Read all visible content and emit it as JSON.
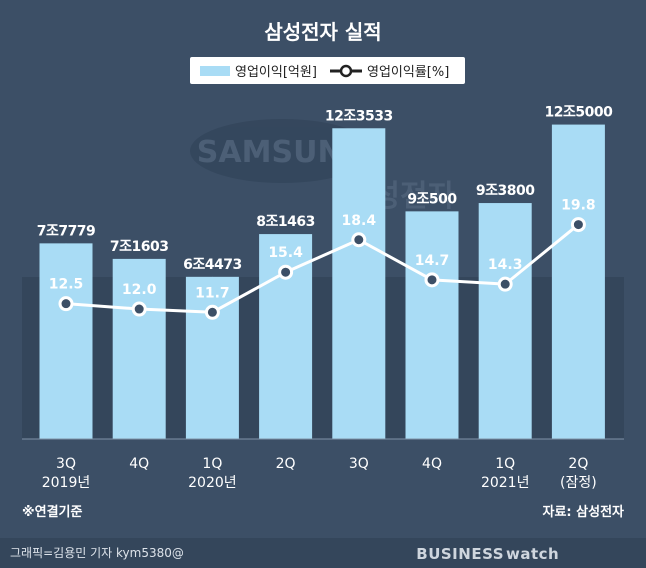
{
  "chart_data": {
    "type": "bar",
    "title": "삼성전자 실적",
    "categories": [
      {
        "q": "3Q",
        "year": "2019년"
      },
      {
        "q": "4Q",
        "year": ""
      },
      {
        "q": "1Q",
        "year": "2020년"
      },
      {
        "q": "2Q",
        "year": ""
      },
      {
        "q": "3Q",
        "year": ""
      },
      {
        "q": "4Q",
        "year": ""
      },
      {
        "q": "1Q",
        "year": "2021년"
      },
      {
        "q": "2Q",
        "year": "(잠정)"
      }
    ],
    "series": [
      {
        "name": "영업이익[억원]",
        "kind": "bar",
        "values": [
          77779,
          71603,
          64473,
          81463,
          123533,
          90500,
          93800,
          125000
        ],
        "labels": [
          "7조7779",
          "7조1603",
          "6조4473",
          "8조1463",
          "12조3533",
          "9조500",
          "9조3800",
          "12조5000"
        ]
      },
      {
        "name": "영업이익률[%]",
        "kind": "line",
        "values": [
          12.5,
          12.0,
          11.7,
          15.4,
          18.4,
          14.7,
          14.3,
          19.8
        ],
        "labels": [
          "12.5",
          "12.0",
          "11.7",
          "15.4",
          "18.4",
          "14.7",
          "14.3",
          "19.8"
        ]
      }
    ],
    "bar_ylim": [
      0,
      130000
    ],
    "line_ylim": [
      0,
      35
    ],
    "colors": {
      "background": "#3c4f66",
      "bar": "#a9dcf5",
      "line": "#ffffff",
      "gridline": "#7f93a8"
    },
    "legend": "top-center"
  },
  "notes": {
    "basis": "※연결기준",
    "source": "자료: 삼성전자"
  },
  "credit": "그래픽=김용민 기자 kym5380@",
  "brand": {
    "left": "BUSINESS",
    "right": "watch"
  },
  "watermark": {
    "logo": "SAMSUNG",
    "name": "삼성전자"
  }
}
